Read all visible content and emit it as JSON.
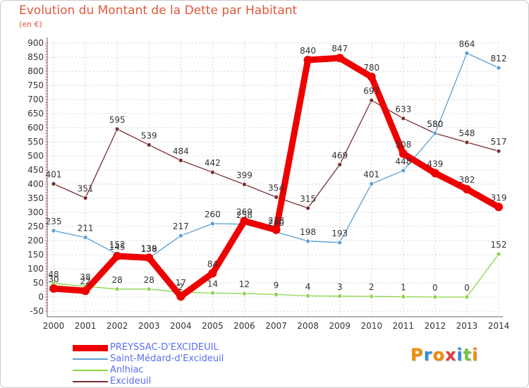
{
  "header": {
    "title": "Evolution du Montant de la Dette par Habitant",
    "subtitle": "(en €)"
  },
  "logo": {
    "text": "Proxiti",
    "colors": [
      "#f08c00",
      "#2a8fd8",
      "#f08c00",
      "#e03c3c",
      "#2a8fd8",
      "#7cc240",
      "#f08c00"
    ]
  },
  "chart_data": {
    "type": "line",
    "x": [
      "2000",
      "2001",
      "2002",
      "2003",
      "2004",
      "2005",
      "2006",
      "2007",
      "2008",
      "2009",
      "2010",
      "2011",
      "2012",
      "2013",
      "2014"
    ],
    "ylim": [
      -50,
      900
    ],
    "yticks": [
      -50,
      0,
      50,
      100,
      150,
      200,
      250,
      300,
      350,
      400,
      450,
      500,
      550,
      600,
      650,
      700,
      750,
      800,
      850,
      900
    ],
    "grid": true,
    "legend_position": "bottom-left",
    "series": [
      {
        "name": "PREYSSAC-D'EXCIDEUIL",
        "color": "#ee0000",
        "values": [
          30,
          22,
          145,
          139,
          2,
          84,
          269,
          238,
          840,
          847,
          780,
          508,
          439,
          382,
          319
        ]
      },
      {
        "name": "Saint-Médard-d'Excideuil",
        "color": "#5a9fd4",
        "values": [
          235,
          211,
          152,
          138,
          217,
          260,
          258,
          230,
          198,
          193,
          401,
          448,
          580,
          864,
          812
        ]
      },
      {
        "name": "Anlhiac",
        "color": "#8fd44a",
        "values": [
          48,
          38,
          28,
          28,
          17,
          14,
          12,
          9,
          4,
          3,
          2,
          1,
          0,
          0,
          152
        ]
      },
      {
        "name": "Excideuil",
        "color": "#7a2f2f",
        "values": [
          401,
          351,
          595,
          539,
          484,
          442,
          399,
          354,
          315,
          469,
          697,
          633,
          580,
          548,
          517
        ]
      }
    ]
  }
}
